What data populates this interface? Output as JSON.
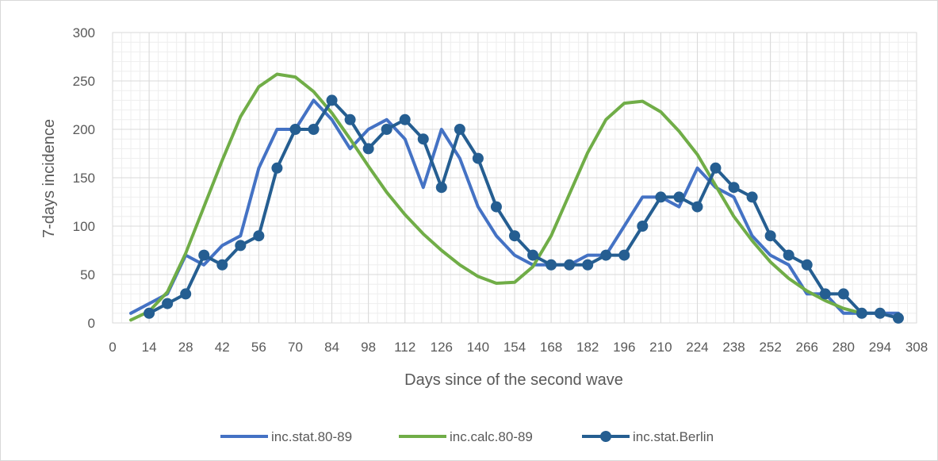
{
  "chart_data": {
    "type": "line",
    "title": "",
    "xlabel": "Days since of the second wave",
    "ylabel": "7-days incidence",
    "xlim": [
      0,
      308
    ],
    "ylim": [
      0,
      300
    ],
    "x_ticks": [
      0,
      14,
      28,
      42,
      56,
      70,
      84,
      98,
      112,
      126,
      140,
      154,
      168,
      182,
      196,
      210,
      224,
      238,
      252,
      266,
      280,
      294,
      308
    ],
    "y_ticks": [
      0,
      50,
      100,
      150,
      200,
      250,
      300
    ],
    "grid": true,
    "legend_position": "bottom",
    "series": [
      {
        "name": "inc.stat.80-89",
        "color": "#4472c4",
        "marker": "none",
        "x": [
          7,
          14,
          21,
          28,
          35,
          42,
          49,
          56,
          63,
          70,
          77,
          84,
          91,
          98,
          105,
          112,
          119,
          126,
          133,
          140,
          147,
          154,
          161,
          168,
          175,
          182,
          189,
          196,
          203,
          210,
          217,
          224,
          231,
          238,
          245,
          252,
          259,
          266,
          273,
          280,
          287,
          294,
          301
        ],
        "values": [
          10,
          20,
          30,
          70,
          60,
          80,
          90,
          160,
          200,
          200,
          230,
          210,
          180,
          200,
          210,
          190,
          140,
          200,
          170,
          120,
          90,
          70,
          60,
          60,
          60,
          70,
          70,
          100,
          130,
          130,
          120,
          160,
          140,
          130,
          90,
          70,
          60,
          30,
          30,
          10,
          10,
          10,
          10
        ]
      },
      {
        "name": "inc.calc.80-89",
        "color": "#70ad47",
        "marker": "none",
        "x": [
          7,
          14,
          21,
          28,
          35,
          42,
          49,
          56,
          63,
          70,
          77,
          84,
          91,
          98,
          105,
          112,
          119,
          126,
          133,
          140,
          147,
          154,
          161,
          168,
          175,
          182,
          189,
          196,
          203,
          210,
          217,
          224,
          231,
          238,
          245,
          252,
          259,
          266,
          273,
          280,
          287
        ],
        "values": [
          3,
          12,
          32,
          72,
          120,
          168,
          213,
          244,
          257,
          254,
          239,
          217,
          190,
          162,
          135,
          112,
          92,
          75,
          60,
          48,
          41,
          42,
          58,
          90,
          133,
          176,
          210,
          227,
          229,
          218,
          198,
          174,
          142,
          110,
          85,
          63,
          46,
          33,
          23,
          15,
          10
        ]
      },
      {
        "name": "inc.stat.Berlin",
        "color": "#255e91",
        "marker": "circle",
        "x": [
          14,
          21,
          28,
          35,
          42,
          49,
          56,
          63,
          70,
          77,
          84,
          91,
          98,
          105,
          112,
          119,
          126,
          133,
          140,
          147,
          154,
          161,
          168,
          175,
          182,
          189,
          196,
          203,
          210,
          217,
          224,
          231,
          238,
          245,
          252,
          259,
          266,
          273,
          280,
          287,
          294,
          301
        ],
        "values": [
          10,
          20,
          30,
          70,
          60,
          80,
          90,
          160,
          200,
          200,
          230,
          210,
          180,
          200,
          210,
          190,
          140,
          200,
          170,
          120,
          90,
          70,
          60,
          60,
          60,
          70,
          70,
          100,
          130,
          130,
          120,
          160,
          140,
          130,
          90,
          70,
          60,
          30,
          30,
          10,
          10,
          5
        ]
      }
    ]
  }
}
